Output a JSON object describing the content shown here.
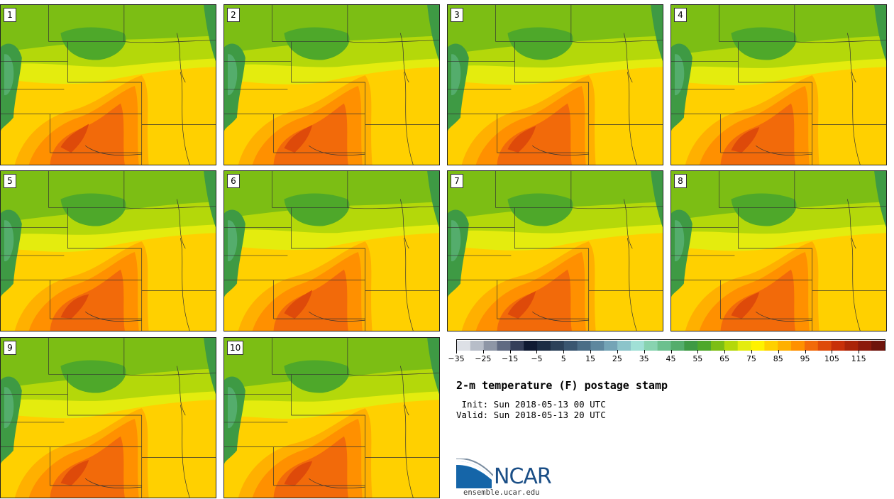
{
  "panels": [
    {
      "label": "1",
      "variant": 0
    },
    {
      "label": "2",
      "variant": 1
    },
    {
      "label": "3",
      "variant": 2
    },
    {
      "label": "4",
      "variant": 3
    },
    {
      "label": "5",
      "variant": 4
    },
    {
      "label": "6",
      "variant": 5
    },
    {
      "label": "7",
      "variant": 6
    },
    {
      "label": "8",
      "variant": 7
    },
    {
      "label": "9",
      "variant": 8
    },
    {
      "label": "10",
      "variant": 9
    }
  ],
  "colorbar": {
    "colors": [
      "#dde0e6",
      "#b7bdc8",
      "#8e96a6",
      "#606a82",
      "#353f5a",
      "#0f1a33",
      "#1b2c44",
      "#2b4159",
      "#3a5670",
      "#4b6d86",
      "#5e879e",
      "#74a4b6",
      "#8cc4ca",
      "#a0e0d6",
      "#88d3b0",
      "#6cc08e",
      "#54ad6c",
      "#3e9a44",
      "#4ea82a",
      "#7cbe14",
      "#b4d80a",
      "#e4ec0e",
      "#fff200",
      "#ffd000",
      "#ffb000",
      "#ff9000",
      "#f26a0a",
      "#de4a0a",
      "#c83008",
      "#aa2408",
      "#8c1a0c",
      "#6e140c"
    ],
    "tick_labels": [
      "−35",
      "−25",
      "−15",
      "−5",
      "5",
      "15",
      "25",
      "35",
      "45",
      "55",
      "65",
      "75",
      "85",
      "95",
      "105",
      "115"
    ]
  },
  "title": "2-m temperature (F) postage stamp",
  "init_line": " Init: Sun 2018-05-13 00 UTC",
  "valid_line": "Valid: Sun 2018-05-13 20 UTC",
  "logo": {
    "word": "NCAR",
    "url": "ensemble.ucar.edu"
  }
}
